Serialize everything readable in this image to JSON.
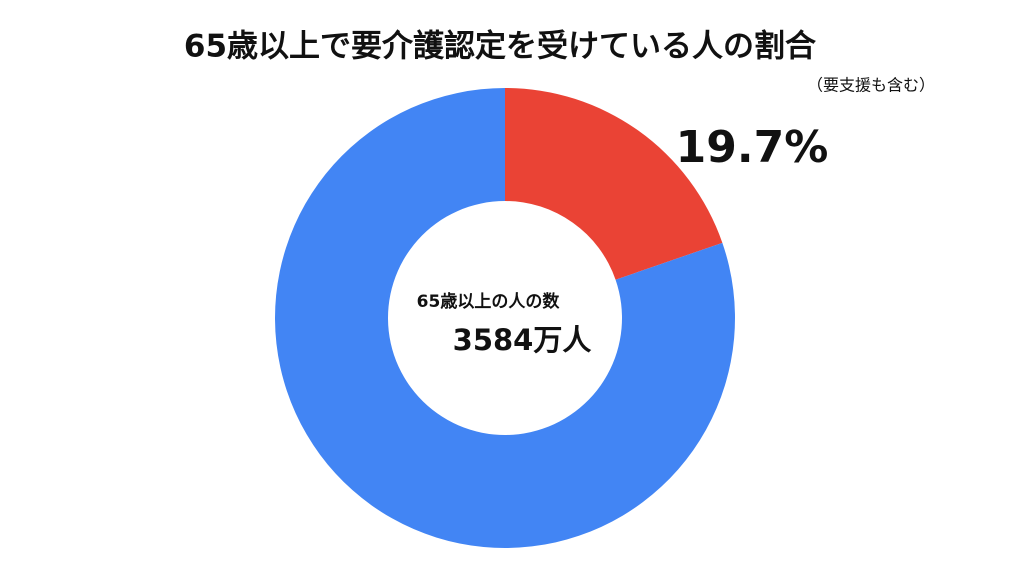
{
  "chart_data": {
    "type": "pie",
    "title": "65歳以上で要介護認定を受けている人の割合",
    "subtitle": "（要支援も含む）",
    "values": [
      19.7,
      80.3
    ],
    "value_labels": [
      "19.7%",
      null
    ],
    "colors": [
      "#ea4335",
      "#4285f4"
    ],
    "center_label": "65歳以上の人の数",
    "center_value": "3584万人"
  }
}
